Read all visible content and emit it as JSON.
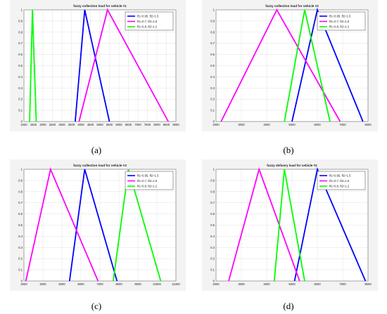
{
  "colors": {
    "blue": "#0000ff",
    "magenta": "#ff00ff",
    "green": "#00ff00"
  },
  "captions": [
    "(a)",
    "(b)",
    "(c)",
    "(d)"
  ],
  "chart_data": [
    {
      "type": "line",
      "title": "fuzzy collection load for vehicle #1",
      "xlim": [
        1000,
        9000
      ],
      "ylim": [
        0,
        1
      ],
      "xticks": [
        "1000",
        "1500",
        "2000",
        "2500",
        "3000",
        "3500",
        "4000",
        "4500",
        "5000",
        "5500",
        "6000",
        "6500",
        "7000",
        "7500",
        "8000",
        "8500",
        "9000"
      ],
      "yticks": [
        "0",
        "0.1",
        "0.2",
        "0.3",
        "0.4",
        "0.5",
        "0.6",
        "0.7",
        "0.8",
        "0.9",
        "1"
      ],
      "grid": true,
      "legend_position": "top-right",
      "series": [
        {
          "name": "θ1=0.95, θ2=1.5",
          "color": "blue",
          "points": [
            [
              3700,
              0
            ],
            [
              4200,
              1
            ],
            [
              5500,
              0
            ]
          ]
        },
        {
          "name": "θ1=0.7, θ2=1.6",
          "color": "magenta",
          "points": [
            [
              3900,
              0
            ],
            [
              5400,
              1
            ],
            [
              8600,
              0
            ]
          ]
        },
        {
          "name": "θ1=0.8, θ2=1.2",
          "color": "green",
          "points": [
            [
              1300,
              0
            ],
            [
              1450,
              1
            ],
            [
              1650,
              0
            ]
          ]
        }
      ]
    },
    {
      "type": "line",
      "title": "fuzzy collection load for vehicle #2",
      "xlim": [
        2000,
        8000
      ],
      "ylim": [
        0,
        1
      ],
      "xticks": [
        "2000",
        "3000",
        "4000",
        "5000",
        "6000",
        "7000",
        "8000"
      ],
      "yticks": [
        "0",
        "0.1",
        "0.2",
        "0.3",
        "0.4",
        "0.5",
        "0.6",
        "0.7",
        "0.8",
        "0.9",
        "1"
      ],
      "grid": true,
      "legend_position": "top-right",
      "series": [
        {
          "name": "θ1=0.95, θ2=1.5",
          "color": "blue",
          "points": [
            [
              5000,
              0
            ],
            [
              6000,
              1
            ],
            [
              7800,
              0
            ]
          ]
        },
        {
          "name": "θ1=0.7, θ2=1.6",
          "color": "magenta",
          "points": [
            [
              2200,
              0
            ],
            [
              4400,
              1
            ],
            [
              6900,
              0
            ]
          ]
        },
        {
          "name": "θ1=0.8, θ2=1.2",
          "color": "green",
          "points": [
            [
              4700,
              0
            ],
            [
              5500,
              1
            ],
            [
              6500,
              0
            ]
          ]
        }
      ]
    },
    {
      "type": "line",
      "title": "fuzzy collection load for vehicle #3",
      "xlim": [
        3000,
        11000
      ],
      "ylim": [
        0,
        1
      ],
      "xticks": [
        "3000",
        "4000",
        "5000",
        "6000",
        "7000",
        "8000",
        "9000",
        "10000",
        "11000"
      ],
      "yticks": [
        "0",
        "0.1",
        "0.2",
        "0.3",
        "0.4",
        "0.5",
        "0.6",
        "0.7",
        "0.8",
        "0.9",
        "1"
      ],
      "grid": true,
      "legend_position": "top-right",
      "series": [
        {
          "name": "θ1=0.95, θ2=1.5",
          "color": "blue",
          "points": [
            [
              5400,
              0
            ],
            [
              6200,
              1
            ],
            [
              7900,
              0
            ]
          ]
        },
        {
          "name": "θ1=0.7, θ2=1.6",
          "color": "magenta",
          "points": [
            [
              3100,
              0
            ],
            [
              4400,
              1
            ],
            [
              6900,
              0
            ]
          ]
        },
        {
          "name": "θ1=0.8, θ2=1.2",
          "color": "green",
          "points": [
            [
              7700,
              0
            ],
            [
              8500,
              1
            ],
            [
              10200,
              0
            ]
          ]
        }
      ]
    },
    {
      "type": "line",
      "title": "fuzzy delivery load for vehicle #2",
      "xlim": [
        2000,
        8000
      ],
      "ylim": [
        0,
        1
      ],
      "xticks": [
        "2000",
        "3000",
        "4000",
        "5000",
        "6000",
        "7000",
        "8000"
      ],
      "yticks": [
        "0",
        "0.1",
        "0.2",
        "0.3",
        "0.4",
        "0.5",
        "0.6",
        "0.7",
        "0.8",
        "0.9",
        "1"
      ],
      "grid": true,
      "legend_position": "top-right",
      "series": [
        {
          "name": "θ1=0.95, θ2=1.5",
          "color": "blue",
          "points": [
            [
              5100,
              0
            ],
            [
              6000,
              1
            ],
            [
              7900,
              0
            ]
          ]
        },
        {
          "name": "θ1=0.7, θ2=1.6",
          "color": "magenta",
          "points": [
            [
              2500,
              0
            ],
            [
              3700,
              1
            ],
            [
              5300,
              0
            ]
          ]
        },
        {
          "name": "θ1=0.8, θ2=1.2",
          "color": "green",
          "points": [
            [
              4300,
              0
            ],
            [
              4700,
              1
            ],
            [
              5500,
              0
            ]
          ]
        }
      ]
    }
  ]
}
